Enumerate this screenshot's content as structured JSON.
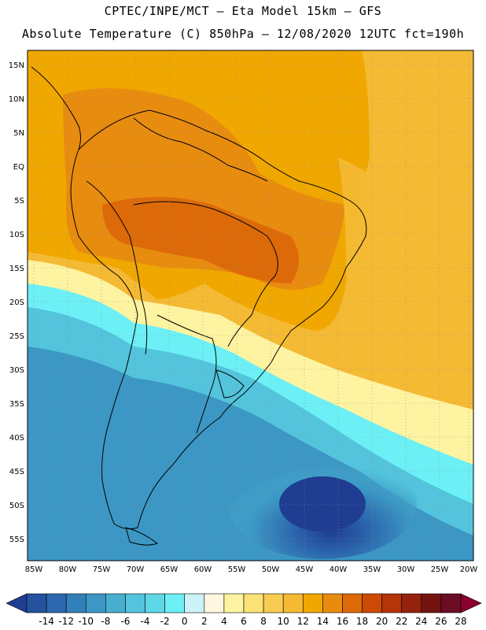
{
  "title": {
    "line1": "CPTEC/INPE/MCT –  Eta Model 15km – GFS",
    "line2": "Absolute Temperature (C) 850hPa – 12/08/2020 12UTC fct=190h"
  },
  "map": {
    "lat_labels": [
      "15N",
      "10N",
      "5N",
      "EQ",
      "5S",
      "10S",
      "15S",
      "20S",
      "25S",
      "30S",
      "35S",
      "40S",
      "45S",
      "50S",
      "55S"
    ],
    "lon_labels": [
      "85W",
      "80W",
      "75W",
      "70W",
      "65W",
      "60W",
      "55W",
      "50W",
      "45W",
      "40W",
      "35W",
      "30W",
      "25W",
      "20W"
    ]
  },
  "colorbar": {
    "values": [
      "-14",
      "-12",
      "-10",
      "-8",
      "-6",
      "-4",
      "-2",
      "0",
      "2",
      "4",
      "6",
      "8",
      "10",
      "12",
      "14",
      "16",
      "18",
      "20",
      "22",
      "24",
      "26",
      "28"
    ],
    "colors": [
      "#1f3d91",
      "#25529f",
      "#2c68ae",
      "#3280b9",
      "#3c97c4",
      "#47aed0",
      "#53c4dc",
      "#5ed8e6",
      "#6cf0f6",
      "#cdf2f8",
      "#fff7e0",
      "#fef3a0",
      "#fbe276",
      "#f8cc52",
      "#f4ba34",
      "#f0a800",
      "#e88c10",
      "#dd6a08",
      "#cd4a06",
      "#b53408",
      "#94220c",
      "#741410",
      "#6a0c24",
      "#8a0030"
    ]
  }
}
